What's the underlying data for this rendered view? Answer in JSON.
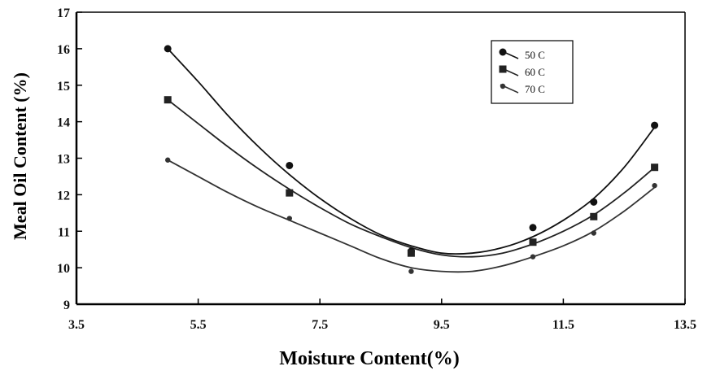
{
  "chart_data": {
    "type": "line",
    "xlabel": "Moisture Content(%)",
    "ylabel": "Meal Oil Content (%)",
    "xlim": [
      3.5,
      13.5
    ],
    "ylim": [
      9,
      17
    ],
    "xticks": [
      "3.5",
      "5.5",
      "7.5",
      "9.5",
      "11.5",
      "13.5"
    ],
    "yticks": [
      "9",
      "10",
      "11",
      "12",
      "13",
      "14",
      "15",
      "16",
      "17"
    ],
    "grid": false,
    "legend_position": "top-right",
    "series": [
      {
        "name": "50 C",
        "marker": "circle",
        "color": "#111111",
        "points": [
          [
            5.0,
            16.0
          ],
          [
            7.0,
            12.8
          ],
          [
            9.0,
            10.45
          ],
          [
            11.0,
            11.1
          ],
          [
            12.0,
            11.8
          ],
          [
            13.0,
            13.9
          ]
        ],
        "fit": [
          [
            5.0,
            16.0
          ],
          [
            5.5,
            15.1
          ],
          [
            6.0,
            14.15
          ],
          [
            6.5,
            13.3
          ],
          [
            7.0,
            12.55
          ],
          [
            7.5,
            11.9
          ],
          [
            8.0,
            11.35
          ],
          [
            8.5,
            10.9
          ],
          [
            9.0,
            10.6
          ],
          [
            9.5,
            10.4
          ],
          [
            10.0,
            10.4
          ],
          [
            10.5,
            10.55
          ],
          [
            11.0,
            10.85
          ],
          [
            11.5,
            11.3
          ],
          [
            12.0,
            11.9
          ],
          [
            12.5,
            12.75
          ],
          [
            13.0,
            13.85
          ]
        ]
      },
      {
        "name": "60 C",
        "marker": "square",
        "color": "#222222",
        "points": [
          [
            5.0,
            14.6
          ],
          [
            7.0,
            12.05
          ],
          [
            9.0,
            10.4
          ],
          [
            11.0,
            10.7
          ],
          [
            12.0,
            11.4
          ],
          [
            13.0,
            12.75
          ]
        ],
        "fit": [
          [
            5.0,
            14.6
          ],
          [
            5.5,
            13.95
          ],
          [
            6.0,
            13.3
          ],
          [
            6.5,
            12.7
          ],
          [
            7.0,
            12.15
          ],
          [
            7.5,
            11.65
          ],
          [
            8.0,
            11.2
          ],
          [
            8.5,
            10.85
          ],
          [
            9.0,
            10.55
          ],
          [
            9.5,
            10.35
          ],
          [
            10.0,
            10.3
          ],
          [
            10.5,
            10.4
          ],
          [
            11.0,
            10.65
          ],
          [
            11.5,
            11.0
          ],
          [
            12.0,
            11.45
          ],
          [
            12.5,
            12.05
          ],
          [
            13.0,
            12.75
          ]
        ]
      },
      {
        "name": "70 C",
        "marker": "diamond",
        "color": "#333333",
        "points": [
          [
            5.0,
            12.95
          ],
          [
            7.0,
            11.35
          ],
          [
            9.0,
            9.9
          ],
          [
            11.0,
            10.3
          ],
          [
            12.0,
            10.95
          ],
          [
            13.0,
            12.25
          ]
        ],
        "fit": [
          [
            5.0,
            12.95
          ],
          [
            5.5,
            12.5
          ],
          [
            6.0,
            12.05
          ],
          [
            6.5,
            11.65
          ],
          [
            7.0,
            11.3
          ],
          [
            7.5,
            10.95
          ],
          [
            8.0,
            10.6
          ],
          [
            8.5,
            10.25
          ],
          [
            9.0,
            10.0
          ],
          [
            9.5,
            9.9
          ],
          [
            10.0,
            9.9
          ],
          [
            10.5,
            10.05
          ],
          [
            11.0,
            10.3
          ],
          [
            11.5,
            10.6
          ],
          [
            12.0,
            11.0
          ],
          [
            12.5,
            11.55
          ],
          [
            13.0,
            12.2
          ]
        ]
      }
    ]
  }
}
